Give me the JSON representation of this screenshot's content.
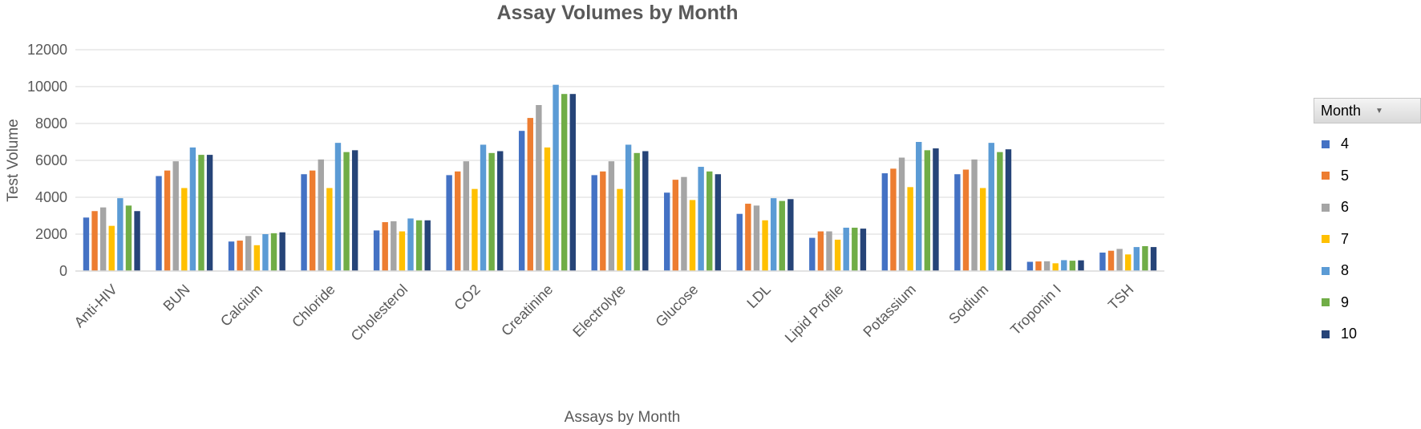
{
  "chart_data": {
    "type": "bar",
    "title": "Assay Volumes by Month",
    "xlabel": "Assays by Month",
    "ylabel": "Test Volume",
    "ylim": [
      0,
      12000
    ],
    "yticks": [
      0,
      2000,
      4000,
      6000,
      8000,
      10000,
      12000
    ],
    "grid": true,
    "legend_title": "Month",
    "legend_position": "right",
    "categories": [
      "Anti-HIV",
      "BUN",
      "Calcium",
      "Chloride",
      "Cholesterol",
      "CO2",
      "Creatinine",
      "Electrolyte",
      "Glucose",
      "LDL",
      "Lipid Profile",
      "Potassium",
      "Sodium",
      "Troponin I",
      "TSH"
    ],
    "series": [
      {
        "name": "4",
        "color": "#4472C4",
        "values": [
          2900,
          5150,
          1600,
          5250,
          2200,
          5200,
          7600,
          5200,
          4250,
          3100,
          1800,
          5300,
          5250,
          500,
          1000
        ]
      },
      {
        "name": "5",
        "color": "#ED7D31",
        "values": [
          3250,
          5450,
          1650,
          5450,
          2650,
          5400,
          8300,
          5400,
          4950,
          3650,
          2150,
          5550,
          5500,
          520,
          1100
        ]
      },
      {
        "name": "6",
        "color": "#A5A5A5",
        "values": [
          3450,
          5950,
          1900,
          6050,
          2700,
          5950,
          9000,
          5950,
          5100,
          3550,
          2150,
          6150,
          6050,
          530,
          1200
        ]
      },
      {
        "name": "7",
        "color": "#FFC000",
        "values": [
          2450,
          4500,
          1400,
          4500,
          2150,
          4450,
          6700,
          4450,
          3850,
          2750,
          1700,
          4550,
          4500,
          420,
          900
        ]
      },
      {
        "name": "8",
        "color": "#5B9BD5",
        "values": [
          3950,
          6700,
          2000,
          6950,
          2850,
          6850,
          10100,
          6850,
          5650,
          3950,
          2350,
          7000,
          6950,
          590,
          1300
        ]
      },
      {
        "name": "9",
        "color": "#70AD47",
        "values": [
          3550,
          6300,
          2050,
          6450,
          2750,
          6400,
          9600,
          6400,
          5400,
          3800,
          2350,
          6550,
          6450,
          560,
          1350
        ]
      },
      {
        "name": "10",
        "color": "#264478",
        "values": [
          3250,
          6300,
          2100,
          6550,
          2750,
          6500,
          9600,
          6500,
          5250,
          3900,
          2300,
          6650,
          6600,
          580,
          1300
        ]
      }
    ]
  }
}
